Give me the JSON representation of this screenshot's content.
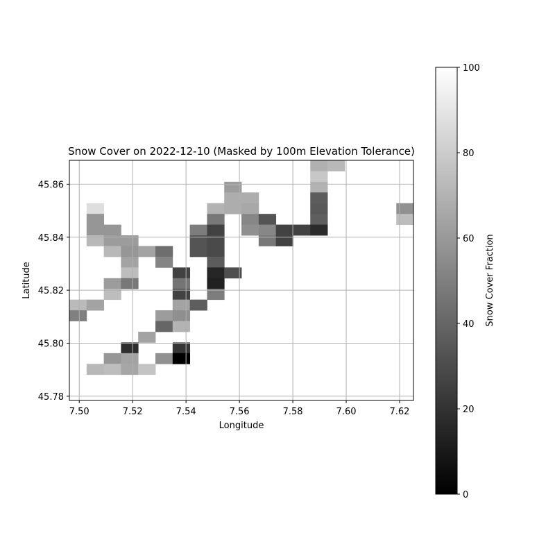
{
  "chart_data": {
    "type": "heatmap",
    "title": "Snow Cover on 2022-12-10 (Masked by 100m Elevation Tolerance)",
    "xlabel": "Longitude",
    "ylabel": "Latitude",
    "xlim": [
      7.4963,
      7.6252
    ],
    "ylim": [
      45.7784,
      45.869
    ],
    "x_ticks": [
      7.5,
      7.52,
      7.54,
      7.56,
      7.58,
      7.6,
      7.62
    ],
    "x_tick_labels": [
      "7.50",
      "7.52",
      "7.54",
      "7.56",
      "7.58",
      "7.60",
      "7.62"
    ],
    "y_ticks": [
      45.78,
      45.8,
      45.82,
      45.84,
      45.86
    ],
    "y_tick_labels": [
      "45.78",
      "45.80",
      "45.82",
      "45.84",
      "45.86"
    ],
    "grid": true,
    "colormap": "gray",
    "colorbar": {
      "label": "Snow Cover Fraction",
      "range": [
        0,
        100
      ],
      "ticks": [
        0,
        20,
        40,
        60,
        80,
        100
      ],
      "tick_labels": [
        "0",
        "20",
        "40",
        "60",
        "80",
        "100"
      ]
    },
    "cell_size": [
      0.006446,
      0.004042
    ],
    "grid_origin": [
      7.4963,
      45.869
    ],
    "cells": [
      {
        "col": 14,
        "row": 0,
        "value": 69
      },
      {
        "col": 15,
        "row": 0,
        "value": 72
      },
      {
        "col": 14,
        "row": 1,
        "value": 78
      },
      {
        "col": 9,
        "row": 2,
        "value": 61
      },
      {
        "col": 14,
        "row": 2,
        "value": 70
      },
      {
        "col": 9,
        "row": 3,
        "value": 68
      },
      {
        "col": 10,
        "row": 3,
        "value": 68
      },
      {
        "col": 14,
        "row": 3,
        "value": 36
      },
      {
        "col": 1,
        "row": 4,
        "value": 87
      },
      {
        "col": 8,
        "row": 4,
        "value": 70
      },
      {
        "col": 9,
        "row": 4,
        "value": 68
      },
      {
        "col": 10,
        "row": 4,
        "value": 66
      },
      {
        "col": 14,
        "row": 4,
        "value": 35
      },
      {
        "col": 19,
        "row": 4,
        "value": 57
      },
      {
        "col": 1,
        "row": 5,
        "value": 59
      },
      {
        "col": 8,
        "row": 5,
        "value": 47
      },
      {
        "col": 10,
        "row": 5,
        "value": 53
      },
      {
        "col": 11,
        "row": 5,
        "value": 33
      },
      {
        "col": 14,
        "row": 5,
        "value": 37
      },
      {
        "col": 19,
        "row": 5,
        "value": 74
      },
      {
        "col": 1,
        "row": 6,
        "value": 59
      },
      {
        "col": 2,
        "row": 6,
        "value": 59
      },
      {
        "col": 7,
        "row": 6,
        "value": 49
      },
      {
        "col": 8,
        "row": 6,
        "value": 26
      },
      {
        "col": 10,
        "row": 6,
        "value": 56
      },
      {
        "col": 11,
        "row": 6,
        "value": 53
      },
      {
        "col": 12,
        "row": 6,
        "value": 26
      },
      {
        "col": 13,
        "row": 6,
        "value": 26
      },
      {
        "col": 14,
        "row": 6,
        "value": 17
      },
      {
        "col": 1,
        "row": 7,
        "value": 72
      },
      {
        "col": 2,
        "row": 7,
        "value": 61
      },
      {
        "col": 3,
        "row": 7,
        "value": 61
      },
      {
        "col": 7,
        "row": 7,
        "value": 33
      },
      {
        "col": 8,
        "row": 7,
        "value": 29
      },
      {
        "col": 11,
        "row": 7,
        "value": 47
      },
      {
        "col": 12,
        "row": 7,
        "value": 26
      },
      {
        "col": 2,
        "row": 8,
        "value": 72
      },
      {
        "col": 3,
        "row": 8,
        "value": 59
      },
      {
        "col": 4,
        "row": 8,
        "value": 64
      },
      {
        "col": 5,
        "row": 8,
        "value": 43
      },
      {
        "col": 7,
        "row": 8,
        "value": 33
      },
      {
        "col": 8,
        "row": 8,
        "value": 29
      },
      {
        "col": 3,
        "row": 9,
        "value": 64
      },
      {
        "col": 5,
        "row": 9,
        "value": 52
      },
      {
        "col": 8,
        "row": 9,
        "value": 36
      },
      {
        "col": 3,
        "row": 10,
        "value": 74
      },
      {
        "col": 6,
        "row": 10,
        "value": 26
      },
      {
        "col": 8,
        "row": 10,
        "value": 15
      },
      {
        "col": 9,
        "row": 10,
        "value": 31
      },
      {
        "col": 2,
        "row": 11,
        "value": 61
      },
      {
        "col": 3,
        "row": 11,
        "value": 47
      },
      {
        "col": 6,
        "row": 11,
        "value": 46
      },
      {
        "col": 8,
        "row": 11,
        "value": 13
      },
      {
        "col": 2,
        "row": 12,
        "value": 74
      },
      {
        "col": 6,
        "row": 12,
        "value": 26
      },
      {
        "col": 8,
        "row": 12,
        "value": 49
      },
      {
        "col": 0,
        "row": 13,
        "value": 73
      },
      {
        "col": 1,
        "row": 13,
        "value": 64
      },
      {
        "col": 6,
        "row": 13,
        "value": 64
      },
      {
        "col": 7,
        "row": 13,
        "value": 37
      },
      {
        "col": 0,
        "row": 14,
        "value": 50
      },
      {
        "col": 5,
        "row": 14,
        "value": 61
      },
      {
        "col": 6,
        "row": 14,
        "value": 56
      },
      {
        "col": 5,
        "row": 15,
        "value": 40
      },
      {
        "col": 6,
        "row": 15,
        "value": 70
      },
      {
        "col": 4,
        "row": 16,
        "value": 64
      },
      {
        "col": 3,
        "row": 17,
        "value": 18
      },
      {
        "col": 6,
        "row": 17,
        "value": 21
      },
      {
        "col": 2,
        "row": 18,
        "value": 59
      },
      {
        "col": 3,
        "row": 18,
        "value": 64
      },
      {
        "col": 5,
        "row": 18,
        "value": 57
      },
      {
        "col": 6,
        "row": 18,
        "value": 0
      },
      {
        "col": 1,
        "row": 19,
        "value": 72
      },
      {
        "col": 2,
        "row": 19,
        "value": 74
      },
      {
        "col": 3,
        "row": 19,
        "value": 65
      },
      {
        "col": 4,
        "row": 19,
        "value": 77
      }
    ]
  }
}
